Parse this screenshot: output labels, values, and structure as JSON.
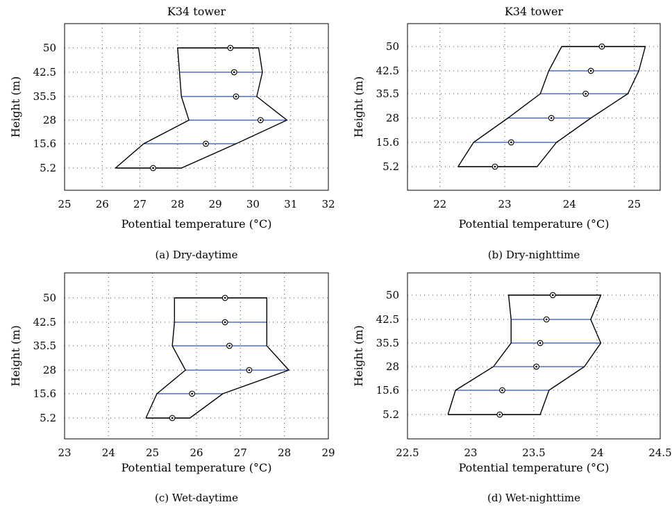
{
  "chart_data": [
    {
      "type": "line",
      "panel": "a",
      "title": "K34 tower",
      "caption": "(a)  Dry-daytime",
      "xlabel": "Potential temperature (°C)",
      "ylabel": "Height (m)",
      "xlim": [
        25,
        32
      ],
      "xticks": [
        25,
        26,
        27,
        28,
        29,
        30,
        31,
        32
      ],
      "height_labels": [
        "5.2",
        "15.6",
        "28",
        "35.5",
        "42.5",
        "50"
      ],
      "grid": true,
      "series": [
        {
          "min": [
            26.35,
            27.1,
            28.3,
            28.1,
            28.05,
            28.0
          ]
        },
        {
          "mean": [
            27.35,
            28.75,
            30.2,
            29.55,
            29.5,
            29.4
          ]
        },
        {
          "max": [
            28.1,
            29.55,
            30.9,
            30.1,
            30.25,
            30.15
          ]
        }
      ]
    },
    {
      "type": "line",
      "panel": "b",
      "title": "K34 tower",
      "caption": "(b)  Dry-nighttime",
      "xlabel": "Potential temperature (°C)",
      "ylabel": "Height (m)",
      "xlim": [
        21.5,
        25.4
      ],
      "xticks": [
        22,
        23,
        24,
        25
      ],
      "height_labels": [
        "5.2",
        "15.6",
        "28",
        "35.5",
        "42.5",
        "50"
      ],
      "grid": true,
      "series": [
        {
          "min": [
            22.28,
            22.52,
            23.05,
            23.55,
            23.68,
            23.88
          ]
        },
        {
          "mean": [
            22.85,
            23.1,
            23.72,
            24.25,
            24.33,
            24.5
          ]
        },
        {
          "max": [
            23.5,
            23.8,
            24.33,
            24.9,
            25.07,
            25.17
          ]
        }
      ]
    },
    {
      "type": "line",
      "panel": "c",
      "title": "",
      "caption": "(c)  Wet-daytime",
      "xlabel": "Potential temperature (°C)",
      "ylabel": "Height (m)",
      "xlim": [
        23,
        29
      ],
      "xticks": [
        23,
        24,
        25,
        26,
        27,
        28,
        29
      ],
      "height_labels": [
        "5.2",
        "15.6",
        "28",
        "35.5",
        "42.5",
        "50"
      ],
      "grid": true,
      "series": [
        {
          "min": [
            24.85,
            25.1,
            25.75,
            25.45,
            25.5,
            25.5
          ]
        },
        {
          "mean": [
            25.45,
            25.9,
            27.2,
            26.75,
            26.65,
            26.65
          ]
        },
        {
          "max": [
            25.85,
            26.6,
            28.1,
            27.6,
            27.6,
            27.6
          ]
        }
      ]
    },
    {
      "type": "line",
      "panel": "d",
      "title": "",
      "caption": "(d)  Wet-nighttime",
      "xlabel": "Potential temperature (°C)",
      "ylabel": "Height (m)",
      "xlim": [
        22.5,
        24.5
      ],
      "xticks": [
        22.5,
        23,
        23.5,
        24,
        24.5
      ],
      "xtick_labels": [
        "22.5",
        "23",
        "23.5",
        "24",
        "24.5"
      ],
      "height_labels": [
        "5.2",
        "15.6",
        "28",
        "35.5",
        "42.5",
        "50"
      ],
      "grid": true,
      "series": [
        {
          "min": [
            22.82,
            22.88,
            23.18,
            23.32,
            23.32,
            23.3
          ]
        },
        {
          "mean": [
            23.23,
            23.25,
            23.52,
            23.55,
            23.6,
            23.65
          ]
        },
        {
          "max": [
            23.55,
            23.62,
            23.9,
            24.03,
            23.95,
            24.03
          ]
        }
      ]
    }
  ]
}
